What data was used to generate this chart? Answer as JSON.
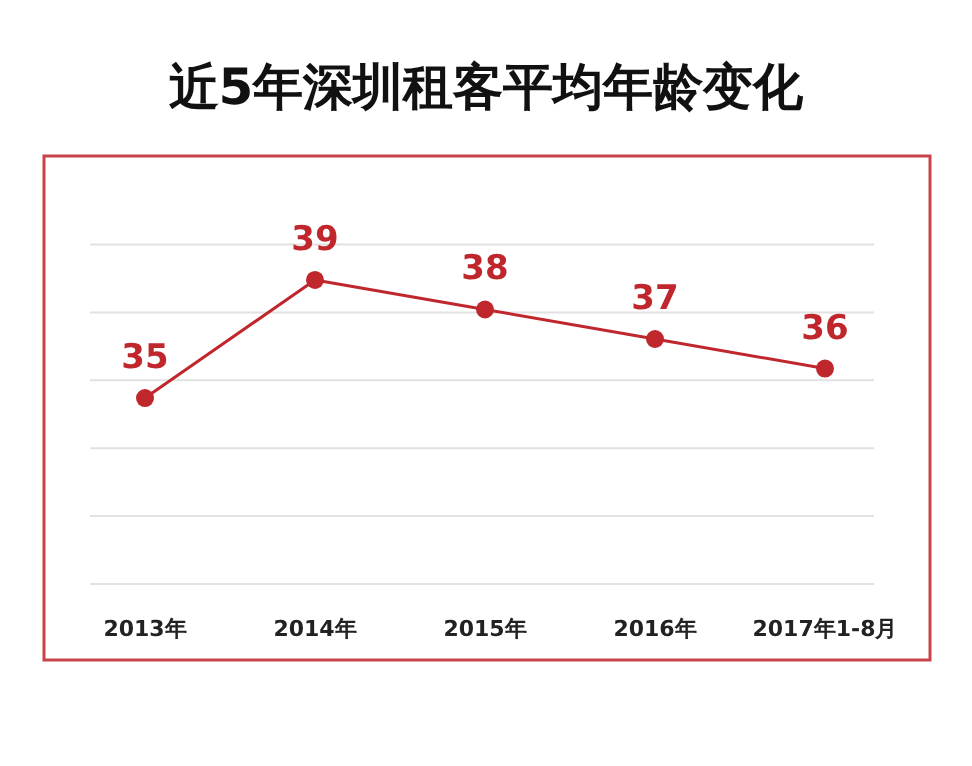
{
  "chart_data": {
    "type": "line",
    "title": "近5年深圳租客平均年龄变化",
    "categories": [
      "2013年",
      "2014年",
      "2015年",
      "2016年",
      "2017年1-8月"
    ],
    "series": [
      {
        "color": "#c0272d",
        "values": [
          35,
          39,
          38,
          37,
          36
        ]
      }
    ],
    "ylim": [
      28.7,
      43.2
    ],
    "yticks": [
      {
        "value": 28.7,
        "label": null
      },
      {
        "value": 31,
        "label": null
      },
      {
        "value": 33.3,
        "label": null
      },
      {
        "value": 35.6,
        "label": null
      },
      {
        "value": 37.9,
        "label": null
      },
      {
        "value": 40.2,
        "label": null
      }
    ],
    "grid": "y",
    "tick_labels": "x",
    "data_labels": true,
    "marker": "circle",
    "line_style": "solid"
  }
}
